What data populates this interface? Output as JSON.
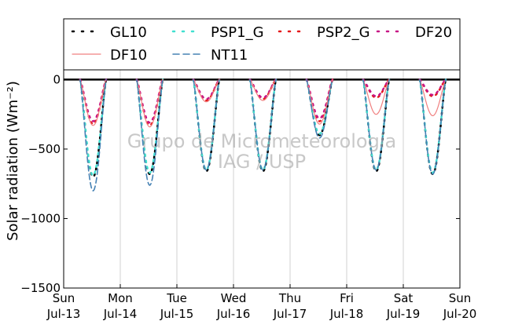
{
  "chart_data": {
    "type": "line",
    "ylabel": "Solar radiation (Wm⁻²)",
    "ylim": [
      -1500,
      70
    ],
    "yticks": [
      0,
      -500,
      -1000,
      -1500
    ],
    "grid": "vertical",
    "legend": {
      "placement": "top",
      "entries": [
        "GL10",
        "PSP1_G",
        "PSP2_G",
        "DF20",
        "DF10",
        "NT11"
      ]
    },
    "watermark": [
      "Grupo de Micrometeorologia",
      "IAG / USP"
    ],
    "x_day_ticks": [
      {
        "day": "Sun",
        "date": "Jul-13"
      },
      {
        "day": "Mon",
        "date": "Jul-14"
      },
      {
        "day": "Tue",
        "date": "Jul-15"
      },
      {
        "day": "Wed",
        "date": "Jul-16"
      },
      {
        "day": "Thu",
        "date": "Jul-17"
      },
      {
        "day": "Fri",
        "date": "Jul-18"
      },
      {
        "day": "Sat",
        "date": "Jul-19"
      },
      {
        "day": "Sun",
        "date": "Jul-20"
      }
    ],
    "series": [
      {
        "name": "GL10",
        "color": "#000000",
        "style": "dot",
        "daily_peak": [
          -700,
          -680,
          -660,
          -660,
          -400,
          -660,
          -680
        ]
      },
      {
        "name": "PSP1_G",
        "color": "#40e0d0",
        "style": "dot",
        "daily_peak": [
          -690,
          -670,
          -650,
          -650,
          -390,
          -650,
          -670
        ]
      },
      {
        "name": "PSP2_G",
        "color": "#e41a1c",
        "style": "dot",
        "daily_peak": [
          -320,
          -330,
          -150,
          -140,
          -300,
          -130,
          -120
        ]
      },
      {
        "name": "DF20",
        "color": "#c71585",
        "style": "dot",
        "daily_peak": [
          -300,
          -310,
          -140,
          -130,
          -280,
          -120,
          -110
        ]
      },
      {
        "name": "DF10",
        "color": "#f08080",
        "style": "solid",
        "daily_peak": [
          -330,
          -340,
          -160,
          -150,
          -320,
          -250,
          -260
        ]
      },
      {
        "name": "NT11",
        "color": "#4682b4",
        "style": "dashed",
        "daily_peak": [
          -800,
          -760,
          -650,
          -650,
          -420,
          -650,
          -680
        ]
      }
    ]
  }
}
